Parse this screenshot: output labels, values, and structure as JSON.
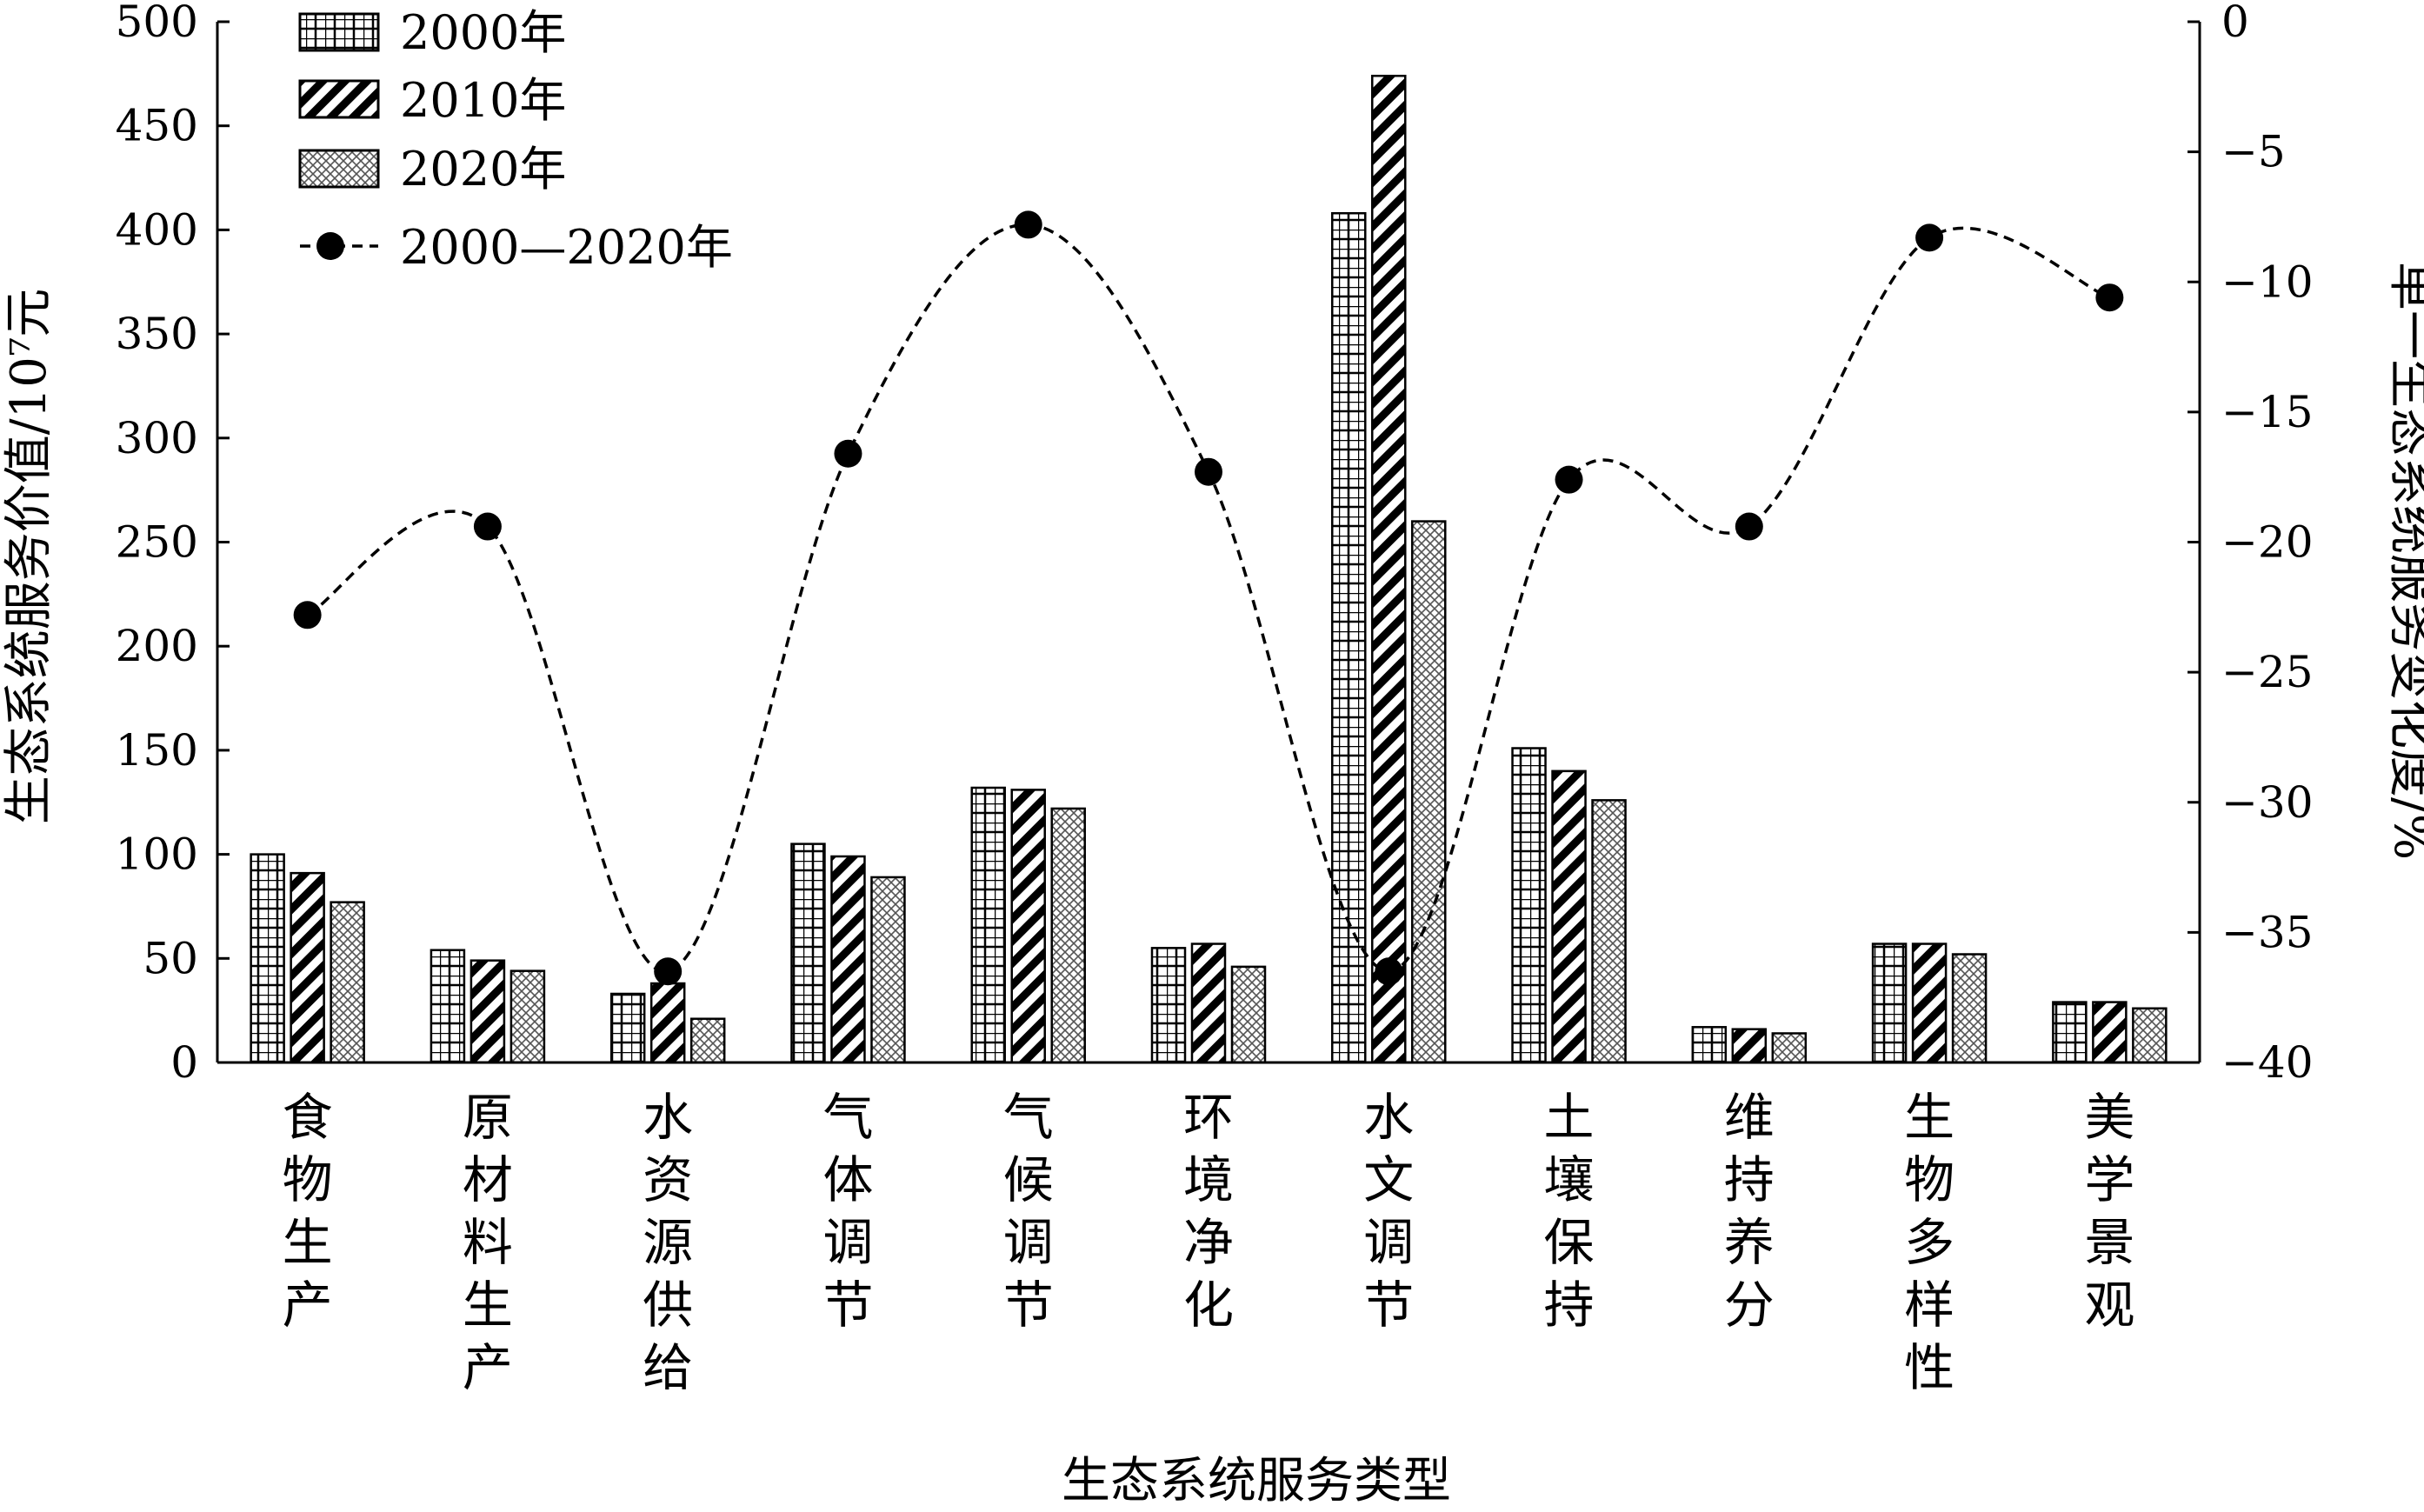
{
  "chart_data": {
    "type": "bar",
    "xlabel": "生态系统服务类型",
    "ylabel_left": "生态系统服务价值/10⁷元",
    "ylabel_right": "单一生态系统服务变化度/%",
    "ylim_left": [
      0,
      500
    ],
    "ylim_right": [
      -40,
      0
    ],
    "left_ticks": [
      "0",
      "50",
      "100",
      "150",
      "200",
      "250",
      "300",
      "350",
      "400",
      "450",
      "500"
    ],
    "right_ticks": [
      "0",
      "−5",
      "−10",
      "−15",
      "−20",
      "−25",
      "−30",
      "−35",
      "−40"
    ],
    "grid": false,
    "legend_position": "top-left",
    "categories": [
      "食物生产",
      "原材料生产",
      "水资源供给",
      "气体调节",
      "气候调节",
      "环境净化",
      "水文调节",
      "土壤保持",
      "维持养分",
      "生物多样性",
      "美学景观"
    ],
    "series": [
      {
        "name": "2000年",
        "axis": "left",
        "pattern": "grid",
        "values": [
          100,
          54,
          33,
          105,
          132,
          55,
          408,
          151,
          17,
          57,
          29
        ]
      },
      {
        "name": "2010年",
        "axis": "left",
        "pattern": "diagonal",
        "values": [
          91,
          49,
          38,
          99,
          131,
          57,
          474,
          140,
          16,
          57,
          29
        ]
      },
      {
        "name": "2020年",
        "axis": "left",
        "pattern": "crosshatch",
        "values": [
          77,
          44,
          21,
          89,
          122,
          46,
          260,
          126,
          14,
          52,
          26
        ]
      },
      {
        "name": "2000—2020年",
        "axis": "right",
        "type": "line",
        "style": "dashed-smooth",
        "values": [
          -22.8,
          -19.4,
          -36.5,
          -16.6,
          -7.8,
          -17.3,
          -36.5,
          -17.6,
          -19.4,
          -8.3,
          -10.6
        ]
      }
    ]
  }
}
